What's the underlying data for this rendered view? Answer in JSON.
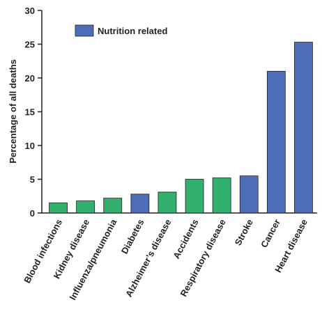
{
  "chart_data": {
    "type": "bar",
    "ylabel": "Percentage of all deaths",
    "ylim": [
      0,
      30
    ],
    "yticks": [
      0,
      5,
      10,
      15,
      20,
      25,
      30
    ],
    "categories": [
      "Blood infections",
      "Kidney disease",
      "Influenza/pneumonia",
      "Diabetes",
      "Alzheimer’s disease",
      "Accidents",
      "Respiratory disease",
      "Stroke",
      "Cancer",
      "Heart disease"
    ],
    "values": [
      1.5,
      1.8,
      2.2,
      2.8,
      3.1,
      5.0,
      5.2,
      5.5,
      21.0,
      25.3
    ],
    "nutrition_related": [
      false,
      false,
      false,
      true,
      false,
      false,
      false,
      true,
      true,
      true
    ],
    "legend": {
      "label": "Nutrition related",
      "placement": "top-left"
    },
    "colors": {
      "nutrition": "#4e6fb7",
      "other": "#31b06e",
      "axis": "#231f20"
    },
    "grid": false
  }
}
